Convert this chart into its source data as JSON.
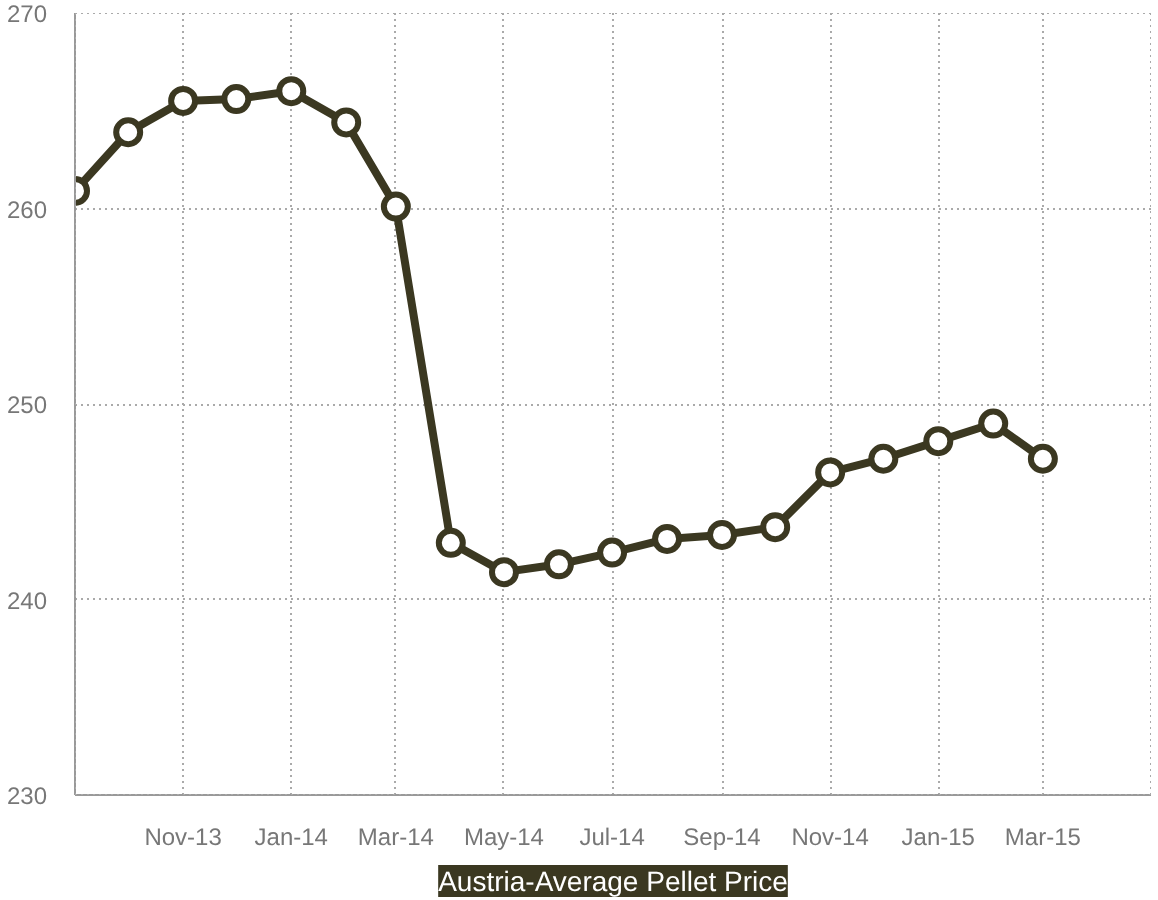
{
  "chart_data": {
    "type": "line",
    "title": "Austria-Average Pellet Price",
    "x": [
      "2013-09",
      "2013-10",
      "2013-11",
      "2013-12",
      "2014-01",
      "2014-02",
      "2014-03",
      "2014-04",
      "2014-05",
      "2014-06",
      "2014-07",
      "2014-08",
      "2014-09",
      "2014-10",
      "2014-11",
      "2014-12",
      "2015-01",
      "2015-02",
      "2015-03"
    ],
    "series": [
      {
        "color": "#3b3821",
        "values": [
          260.9,
          263.9,
          265.5,
          265.6,
          266.0,
          264.4,
          260.1,
          242.9,
          241.4,
          241.8,
          242.4,
          243.1,
          243.3,
          243.7,
          246.5,
          247.2,
          248.1,
          249.0,
          247.2
        ]
      }
    ],
    "xlim": [
      "2013-09",
      "2015-05"
    ],
    "xticks": [
      {
        "value": "2013-09",
        "label": null
      },
      {
        "value": "2013-11",
        "label": "Nov-13"
      },
      {
        "value": "2014-01",
        "label": "Jan-14"
      },
      {
        "value": "2014-03",
        "label": "Mar-14"
      },
      {
        "value": "2014-05",
        "label": "May-14"
      },
      {
        "value": "2014-07",
        "label": "Jul-14"
      },
      {
        "value": "2014-09",
        "label": "Sep-14"
      },
      {
        "value": "2014-11",
        "label": "Nov-14"
      },
      {
        "value": "2015-01",
        "label": "Jan-15"
      },
      {
        "value": "2015-03",
        "label": "Mar-15"
      },
      {
        "value": "2015-05",
        "label": null
      }
    ],
    "ylim": [
      230,
      270
    ],
    "yticks": [
      230,
      240,
      250,
      260,
      270
    ],
    "grid": true,
    "marker": "circle",
    "line_style": "solid"
  }
}
